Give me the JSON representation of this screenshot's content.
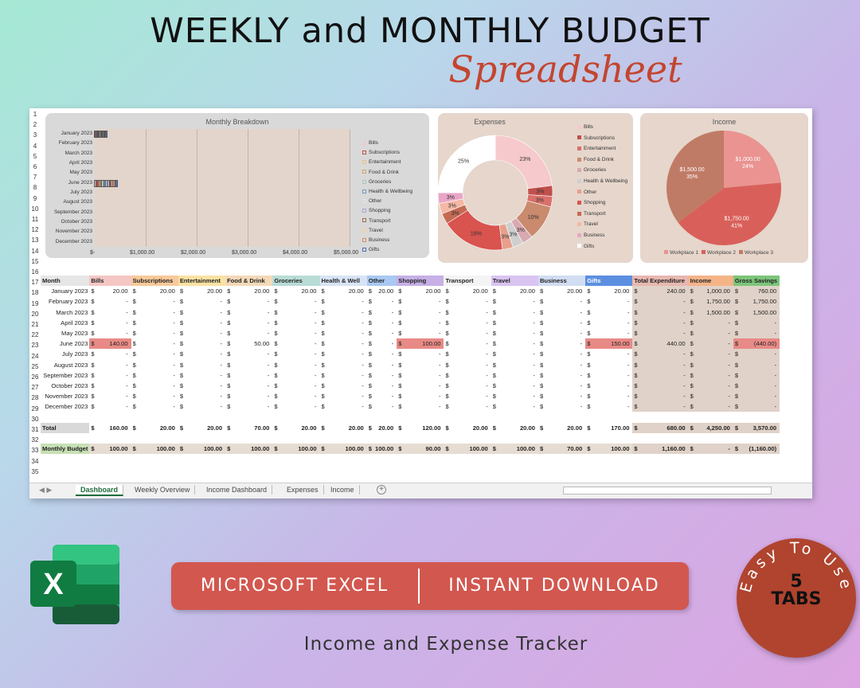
{
  "header": {
    "title": "WEEKLY and MONTHLY BUDGET",
    "subtitle": "Spreadsheet"
  },
  "row_numbers": [
    "1",
    "2",
    "3",
    "4",
    "5",
    "6",
    "7",
    "8",
    "9",
    "10",
    "11",
    "12",
    "13",
    "14",
    "15",
    "16",
    "17",
    "18",
    "19",
    "20",
    "21",
    "22",
    "23",
    "24",
    "25",
    "26",
    "27",
    "28",
    "29",
    "30",
    "31",
    "32",
    "33",
    "34",
    "35"
  ],
  "breakdown_chart": {
    "title": "Monthly Breakdown",
    "months": [
      "January 2023",
      "February 2023",
      "March 2023",
      "April 2023",
      "May 2023",
      "June 2023",
      "July 2023",
      "August 2023",
      "September 2023",
      "October 2023",
      "November 2023",
      "December 2023"
    ],
    "x_ticks": [
      "$-",
      "$1,000.00",
      "$2,000.00",
      "$3,000.00",
      "$4,000.00",
      "$5,000.00"
    ],
    "legend": [
      "Bills",
      "Subscriptions",
      "Entertainment",
      "Food & Drink",
      "Groceries",
      "Health & Wellbeing",
      "Other",
      "Shopping",
      "Transport",
      "Travel",
      "Business",
      "Gifts"
    ],
    "colors": [
      "#f4c7c5",
      "#c0504d",
      "#e8c18a",
      "#d4a06a",
      "#a9c8c3",
      "#7a97c9",
      "#e3e3e3",
      "#b0a0d0",
      "#9c6b4f",
      "#f9d19b",
      "#d98a66",
      "#4f6fb8"
    ],
    "january_total": 240,
    "june_total": 440
  },
  "chart_data": [
    {
      "type": "pie",
      "title": "Expenses",
      "categories": [
        "Bills",
        "Subscriptions",
        "Entertainment",
        "Food & Drink",
        "Groceries",
        "Health & Wellbeing",
        "Other",
        "Shopping",
        "Transport",
        "Travel",
        "Business",
        "Gifts"
      ],
      "values": [
        23,
        3,
        3,
        10,
        3,
        3,
        3,
        18,
        3,
        3,
        3,
        25
      ],
      "labels": [
        "23%",
        "3%",
        "3%",
        "10%",
        "3%",
        "3%",
        "3%",
        "18%",
        "3%",
        "3%",
        "3%",
        "25%"
      ],
      "colors": [
        "#f6c9cc",
        "#c0504d",
        "#d9706a",
        "#c98a6e",
        "#d8a9b0",
        "#cfcfcf",
        "#e6a08c",
        "#d9534f",
        "#c46a52",
        "#f4b8a4",
        "#e9a6c6",
        "#ffffff"
      ]
    },
    {
      "type": "pie",
      "title": "Income",
      "categories": [
        "Workplace 1",
        "Workplace 2",
        "Workplace 3"
      ],
      "values": [
        1000,
        1750,
        1500
      ],
      "labels": [
        [
          "$1,000.00",
          "24%"
        ],
        [
          "$1,750.00",
          "41%"
        ],
        [
          "$1,500.00",
          "35%"
        ]
      ],
      "colors": [
        "#ea9391",
        "#d9605a",
        "#c07b66"
      ]
    }
  ],
  "table": {
    "headers": [
      "Month",
      "Bills",
      "Subscriptions",
      "Entertainment",
      "Food & Drink",
      "Groceries",
      "Health & Well",
      "Other",
      "Shopping",
      "Transport",
      "Travel",
      "Business",
      "Gifts",
      "Total Expenditure",
      "Income",
      "Gross Savings"
    ],
    "header_colors": [
      "#e6e6e6",
      "#f4c7c5",
      "#f9c99a",
      "#fbe2a3",
      "#f4d9b8",
      "#b9dcd6",
      "#d8e4f5",
      "#a9c8f2",
      "#c6b0e6",
      "#f4f4f4",
      "#d9c4f2",
      "#d1ddf2",
      "#5c8fe0",
      "#e8b8b0",
      "#f4b488",
      "#7cc57a"
    ],
    "rows": [
      [
        "January 2023",
        "20.00",
        "20.00",
        "20.00",
        "20.00",
        "20.00",
        "20.00",
        "20.00",
        "20.00",
        "20.00",
        "20.00",
        "20.00",
        "20.00",
        "240.00",
        "1,000.00",
        "760.00"
      ],
      [
        "February 2023",
        "-",
        "-",
        "-",
        "-",
        "-",
        "-",
        "-",
        "-",
        "-",
        "-",
        "-",
        "-",
        "-",
        "1,750.00",
        "1,750.00"
      ],
      [
        "March 2023",
        "-",
        "-",
        "-",
        "-",
        "-",
        "-",
        "-",
        "-",
        "-",
        "-",
        "-",
        "-",
        "-",
        "1,500.00",
        "1,500.00"
      ],
      [
        "April 2023",
        "-",
        "-",
        "-",
        "-",
        "-",
        "-",
        "-",
        "-",
        "-",
        "-",
        "-",
        "-",
        "-",
        "-",
        "-"
      ],
      [
        "May 2023",
        "-",
        "-",
        "-",
        "-",
        "-",
        "-",
        "-",
        "-",
        "-",
        "-",
        "-",
        "-",
        "-",
        "-",
        "-"
      ],
      [
        "June 2023",
        "140.00",
        "-",
        "-",
        "50.00",
        "-",
        "-",
        "-",
        "100.00",
        "-",
        "-",
        "-",
        "150.00",
        "440.00",
        "-",
        "(440.00)"
      ],
      [
        "July 2023",
        "-",
        "-",
        "-",
        "-",
        "-",
        "-",
        "-",
        "-",
        "-",
        "-",
        "-",
        "-",
        "-",
        "-",
        "-"
      ],
      [
        "August 2023",
        "-",
        "-",
        "-",
        "-",
        "-",
        "-",
        "-",
        "-",
        "-",
        "-",
        "-",
        "-",
        "-",
        "-",
        "-"
      ],
      [
        "September 2023",
        "-",
        "-",
        "-",
        "-",
        "-",
        "-",
        "-",
        "-",
        "-",
        "-",
        "-",
        "-",
        "-",
        "-",
        "-"
      ],
      [
        "October 2023",
        "-",
        "-",
        "-",
        "-",
        "-",
        "-",
        "-",
        "-",
        "-",
        "-",
        "-",
        "-",
        "-",
        "-",
        "-"
      ],
      [
        "November 2023",
        "-",
        "-",
        "-",
        "-",
        "-",
        "-",
        "-",
        "-",
        "-",
        "-",
        "-",
        "-",
        "-",
        "-",
        "-"
      ],
      [
        "December 2023",
        "-",
        "-",
        "-",
        "-",
        "-",
        "-",
        "-",
        "-",
        "-",
        "-",
        "-",
        "-",
        "-",
        "-",
        "-"
      ]
    ],
    "total_label": "Total",
    "total": [
      "160.00",
      "20.00",
      "20.00",
      "70.00",
      "20.00",
      "20.00",
      "20.00",
      "120.00",
      "20.00",
      "20.00",
      "20.00",
      "170.00",
      "680.00",
      "4,250.00",
      "3,570.00"
    ],
    "budget_label": "Monthly Budget",
    "budget": [
      "100.00",
      "100.00",
      "100.00",
      "100.00",
      "100.00",
      "100.00",
      "100.00",
      "90.00",
      "100.00",
      "100.00",
      "70.00",
      "100.00",
      "1,160.00",
      "-",
      "(1,160.00)"
    ],
    "currency": "$"
  },
  "tabs": [
    "Dashboard",
    "Weekly Overview",
    "Income Dashboard",
    "Expenses",
    "Income"
  ],
  "promo": {
    "left": "MICROSOFT EXCEL",
    "right": "INSTANT DOWNLOAD",
    "tagline": "Income and Expense Tracker",
    "badge_arc": "Easy To Use",
    "badge_num": "5",
    "badge_tabs": "TABS",
    "excel_letter": "X"
  }
}
